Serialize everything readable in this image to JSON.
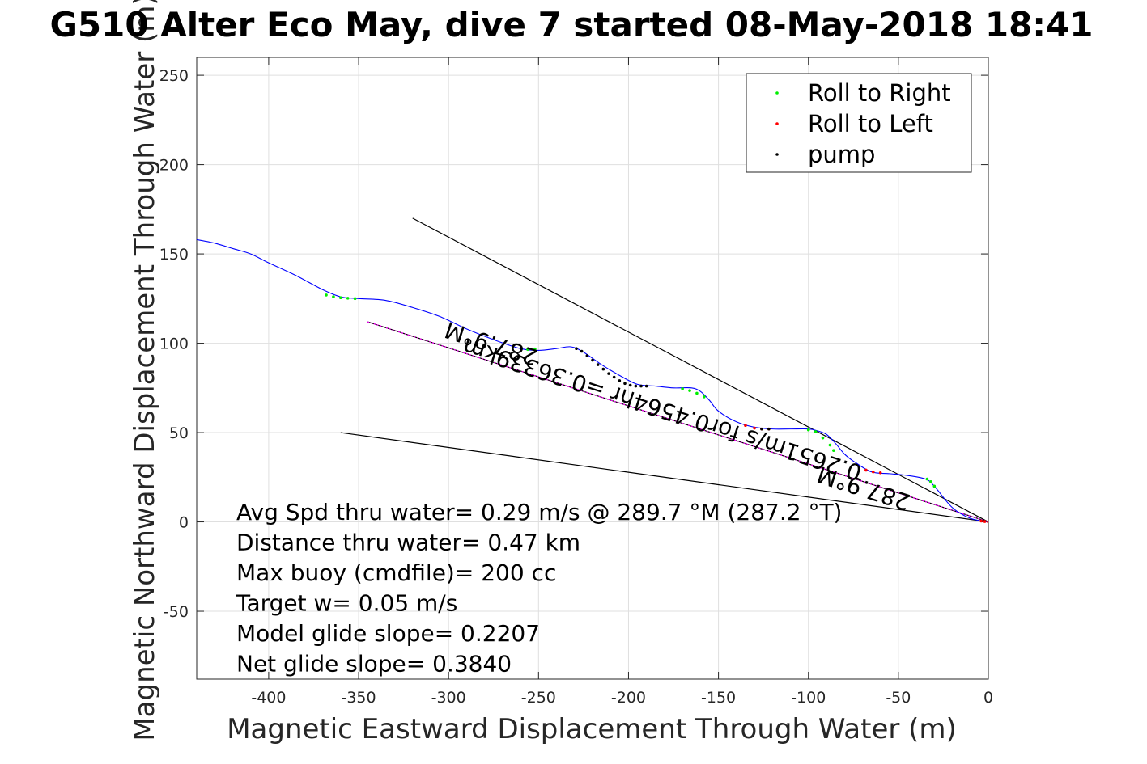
{
  "chart_data": {
    "type": "line",
    "title": "G510 Alter Eco May, dive 7 started 08-May-2018 18:41",
    "xlabel": "Magnetic Eastward Displacement Through Water (m)",
    "ylabel": "Magnetic Northward Displacement Through Water (m)",
    "xlim": [
      -440,
      0
    ],
    "ylim": [
      -88,
      260
    ],
    "xticks": [
      -400,
      -350,
      -300,
      -250,
      -200,
      -150,
      -100,
      -50,
      0
    ],
    "yticks": [
      -50,
      0,
      50,
      100,
      150,
      200,
      250
    ],
    "xticklabels": [
      "-400",
      "-350",
      "-300",
      "-250",
      "-200",
      "-150",
      "-100",
      "-50",
      "0"
    ],
    "yticklabels": [
      "-50",
      "0",
      "50",
      "100",
      "150",
      "200",
      "250"
    ],
    "grid": true,
    "legend_position": "top-right",
    "legend": [
      "Roll to Right",
      "Roll to Left",
      "pump"
    ],
    "colors": {
      "track": "#0000ff",
      "roll_right": "#00ee00",
      "roll_left": "#ff0000",
      "pump": "#000000",
      "mean_line": "#ff00ff",
      "guide_lines": "#000000"
    },
    "track": [
      [
        0,
        0
      ],
      [
        -10,
        2
      ],
      [
        -20,
        8
      ],
      [
        -30,
        20
      ],
      [
        -35,
        24
      ],
      [
        -45,
        26
      ],
      [
        -55,
        27
      ],
      [
        -65,
        28
      ],
      [
        -75,
        34
      ],
      [
        -80,
        38
      ],
      [
        -85,
        44
      ],
      [
        -90,
        49
      ],
      [
        -95,
        51
      ],
      [
        -100,
        52
      ],
      [
        -110,
        52
      ],
      [
        -120,
        52
      ],
      [
        -130,
        53
      ],
      [
        -140,
        56
      ],
      [
        -150,
        62
      ],
      [
        -155,
        68
      ],
      [
        -160,
        73
      ],
      [
        -165,
        75
      ],
      [
        -175,
        75
      ],
      [
        -185,
        76
      ],
      [
        -195,
        77
      ],
      [
        -205,
        82
      ],
      [
        -215,
        88
      ],
      [
        -225,
        95
      ],
      [
        -232,
        98
      ],
      [
        -240,
        97
      ],
      [
        -250,
        96
      ],
      [
        -260,
        97
      ],
      [
        -275,
        102
      ],
      [
        -290,
        108
      ],
      [
        -305,
        115
      ],
      [
        -320,
        120
      ],
      [
        -335,
        124
      ],
      [
        -350,
        125
      ],
      [
        -360,
        126
      ],
      [
        -370,
        130
      ],
      [
        -385,
        138
      ],
      [
        -400,
        145
      ],
      [
        -410,
        150
      ],
      [
        -420,
        153
      ],
      [
        -430,
        156
      ],
      [
        -440,
        158
      ]
    ],
    "series": [
      {
        "name": "Roll to Right",
        "x": [
          -368,
          -364,
          -360,
          -356,
          -352,
          -256,
          -252,
          -170,
          -166,
          -162,
          -158,
          -100,
          -96,
          -92,
          -88,
          -86,
          -34,
          -32,
          -30
        ],
        "y": [
          127,
          126,
          125.5,
          125.2,
          125,
          96.5,
          96.8,
          74.5,
          73.5,
          72,
          70,
          51.5,
          50.5,
          47,
          43,
          40,
          24,
          22.5,
          20
        ]
      },
      {
        "name": "Roll to Left",
        "x": [
          -135,
          -130,
          -126,
          -122,
          -68,
          -64,
          -60,
          -4,
          -2,
          0
        ],
        "y": [
          54,
          52.5,
          52,
          52,
          29,
          28,
          27.5,
          0.5,
          0.2,
          0
        ]
      },
      {
        "name": "pump",
        "x": [
          -229,
          -226,
          -223,
          -220,
          -217,
          -214,
          -211,
          -208,
          -205,
          -202,
          -199,
          -196,
          -193,
          -190,
          -126,
          -122
        ],
        "y": [
          97,
          95.5,
          93,
          90.5,
          88,
          85.5,
          83,
          81,
          79,
          77.5,
          76.5,
          76,
          76,
          76,
          52,
          52
        ]
      }
    ],
    "lines": {
      "mean_track": [
        [
          -345,
          112
        ],
        [
          0,
          0
        ]
      ],
      "upper_bound": [
        [
          -320,
          170
        ],
        [
          0,
          0
        ]
      ],
      "lower_bound": [
        [
          -360,
          50
        ],
        [
          0,
          0
        ]
      ]
    },
    "annotations": {
      "heading_label_a": "287.9°M",
      "heading_label_b": "287.9°M",
      "mean_label": "0.2651m/s for0.4564hr =0.36339km"
    },
    "stats": [
      "Avg Spd thru water=  0.29 m/s @ 289.7 °M (287.2 °T)",
      "Distance thru water=  0.47 km",
      "Max buoy (cmdfile)= 200 cc",
      "Target w= 0.05 m/s",
      "Model glide slope= 0.2207",
      "Net glide slope= 0.3840"
    ]
  }
}
